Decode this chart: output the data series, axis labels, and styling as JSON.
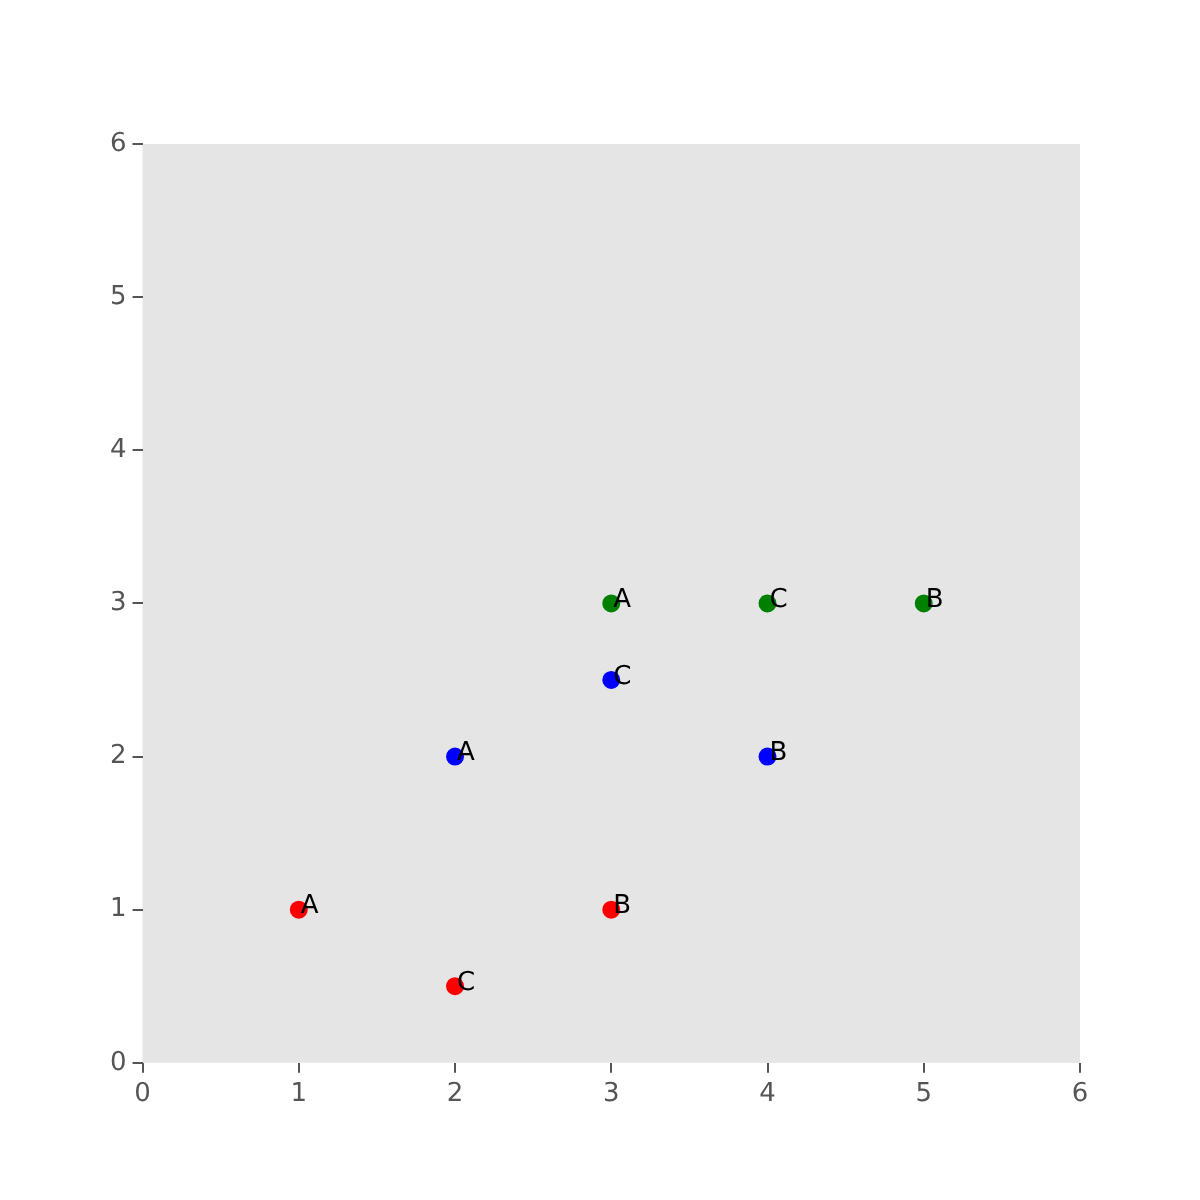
{
  "chart_data": {
    "type": "scatter",
    "xlim": [
      0,
      6
    ],
    "ylim": [
      0,
      6
    ],
    "xticks": [
      0,
      1,
      2,
      3,
      4,
      5,
      6
    ],
    "yticks": [
      0,
      1,
      2,
      3,
      4,
      5,
      6
    ],
    "grid": false,
    "legend": false,
    "marker": "circle",
    "series": [
      {
        "color": "#ff0000",
        "x": [
          1,
          3,
          2
        ],
        "values": [
          1,
          1,
          0.5
        ]
      },
      {
        "color": "#0000ff",
        "x": [
          2,
          4,
          3
        ],
        "values": [
          2,
          2,
          2.5
        ]
      },
      {
        "color": "#008000",
        "x": [
          3,
          5,
          4
        ],
        "values": [
          3,
          3,
          3
        ]
      }
    ],
    "annotations": [
      {
        "text": "A",
        "x": 1,
        "y": 1
      },
      {
        "text": "B",
        "x": 3,
        "y": 1
      },
      {
        "text": "C",
        "x": 2,
        "y": 0.5
      },
      {
        "text": "A",
        "x": 2,
        "y": 2
      },
      {
        "text": "B",
        "x": 4,
        "y": 2
      },
      {
        "text": "C",
        "x": 3,
        "y": 2.5
      },
      {
        "text": "A",
        "x": 3,
        "y": 3
      },
      {
        "text": "B",
        "x": 5,
        "y": 3
      },
      {
        "text": "C",
        "x": 4,
        "y": 3
      }
    ]
  }
}
